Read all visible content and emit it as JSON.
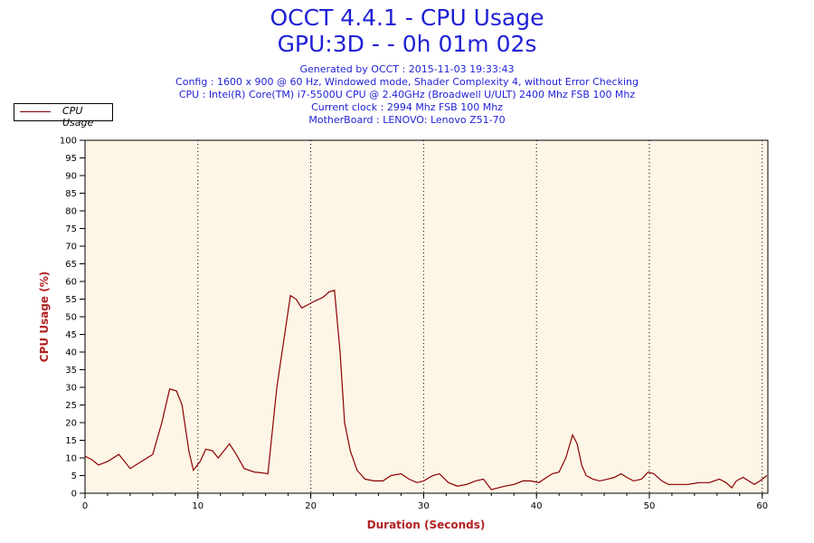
{
  "header": {
    "title": "OCCT 4.4.1 - CPU Usage",
    "subtitle": "GPU:3D -  - 0h 01m 02s",
    "info": [
      "Generated by OCCT : 2015-11-03 19:33:43",
      "Config : 1600 x 900 @ 60 Hz, Windowed mode, Shader Complexity 4, without Error Checking",
      "CPU : Intel(R) Core(TM) i7-5500U CPU @ 2.40GHz (Broadwell U/ULT) 2400 Mhz FSB 100 Mhz",
      "Current clock : 2994 Mhz FSB 100 Mhz",
      "MotherBoard : LENOVO: Lenovo Z51-70"
    ]
  },
  "colors": {
    "title": "#1f1fd6",
    "series": "#8b0000",
    "plot_background": "#fdf5e6",
    "axis_label": "#b22222"
  },
  "chart_data": {
    "type": "line",
    "title": "OCCT 4.4.1 - CPU Usage",
    "xlabel": "Duration (Seconds)",
    "ylabel": "CPU Usage (%)",
    "xlim": [
      0,
      60.5
    ],
    "ylim": [
      0,
      100
    ],
    "x_ticks": [
      0,
      10,
      20,
      30,
      40,
      50,
      60
    ],
    "y_ticks": [
      0,
      5,
      10,
      15,
      20,
      25,
      30,
      35,
      40,
      45,
      50,
      55,
      60,
      65,
      70,
      75,
      80,
      85,
      90,
      95,
      100
    ],
    "grid": "vertical dotted",
    "legend": "top-left",
    "series": [
      {
        "name": "CPU Usage",
        "x": [
          0,
          0.6,
          1.2,
          2,
          3,
          4,
          5,
          6,
          6.8,
          7.5,
          8.1,
          8.6,
          9.2,
          9.6,
          10.2,
          10.7,
          11.3,
          11.8,
          12.3,
          12.8,
          13.4,
          14.1,
          15,
          15.6,
          16.2,
          17,
          17.6,
          18.2,
          18.7,
          19.2,
          19.8,
          20.4,
          21.1,
          21.6,
          22.1,
          22.6,
          23,
          23.5,
          24.1,
          24.8,
          25.6,
          26.4,
          27.1,
          28,
          28.7,
          29.4,
          30,
          30.8,
          31.4,
          32.2,
          33,
          33.8,
          34.6,
          35.3,
          36,
          36.6,
          37.2,
          38,
          38.8,
          39.5,
          40.2,
          40.9,
          41.4,
          42,
          42.6,
          43.2,
          43.6,
          44,
          44.4,
          45,
          45.6,
          46.3,
          46.9,
          47.5,
          48,
          48.6,
          49.3,
          49.9,
          50.4,
          51.1,
          51.7,
          52.5,
          53.4,
          54.4,
          55.3,
          56.2,
          56.8,
          57.3,
          57.7,
          58.3,
          58.8,
          59.3,
          59.8,
          60.4
        ],
        "values": [
          10.5,
          9.5,
          8,
          9,
          11,
          7,
          9,
          11,
          20,
          29.5,
          29,
          25,
          12,
          6.5,
          9,
          12.5,
          12,
          10,
          12,
          14,
          11,
          7,
          6,
          5.8,
          5.5,
          30,
          43,
          56,
          55,
          52.5,
          53.5,
          54.5,
          55.5,
          57,
          57.5,
          40,
          20,
          12,
          6.5,
          4,
          3.5,
          3.5,
          5,
          5.5,
          4,
          3,
          3.5,
          5,
          5.5,
          3,
          2,
          2.5,
          3.5,
          4,
          1,
          1.5,
          2,
          2.5,
          3.5,
          3.5,
          3,
          4.5,
          5.5,
          6,
          10,
          16.5,
          14,
          8,
          5,
          4,
          3.5,
          4,
          4.5,
          5.5,
          4.5,
          3.5,
          4,
          6,
          5.5,
          3.5,
          2.5,
          2.5,
          2.5,
          3,
          3,
          4,
          3,
          1.5,
          3.5,
          4.5,
          3.5,
          2.5,
          3.5,
          5
        ]
      }
    ]
  }
}
